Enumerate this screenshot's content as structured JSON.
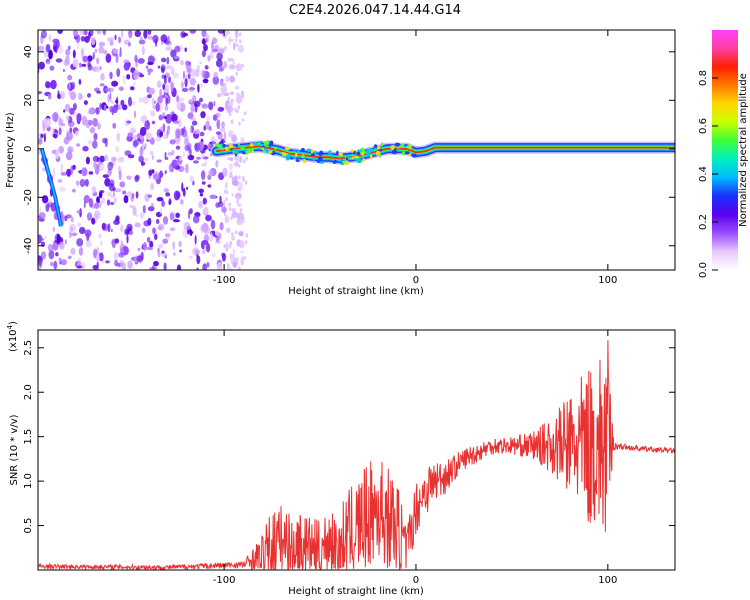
{
  "title": "C2E4.2026.047.14.44.G14",
  "chart_data": [
    {
      "type": "heatmap",
      "title": "C2E4.2026.047.14.44.G14",
      "xlabel": "Height of straight line (km)",
      "ylabel": "Frequency (Hz)",
      "xlim": [
        -197,
        135
      ],
      "ylim": [
        -50,
        49
      ],
      "x_ticks": [
        -100,
        0,
        100
      ],
      "y_ticks": [
        40,
        20,
        0,
        -20,
        -40
      ],
      "colorbar": {
        "label": "Normalized spectral amplitude",
        "range": [
          0,
          1
        ],
        "ticks": [
          0.0,
          0.2,
          0.4,
          0.6,
          0.8
        ],
        "colors": [
          "#ffffff",
          "#e8c8ff",
          "#9a4dff",
          "#5a00ee",
          "#1a30ff",
          "#00b8ff",
          "#00f0c0",
          "#3cff3c",
          "#c8ff00",
          "#ffd800",
          "#ff7a00",
          "#ff2000",
          "#ff40a0",
          "#ff40ff"
        ]
      },
      "noise_region": {
        "x_from": -197,
        "x_to": -100
      },
      "ridge": {
        "x": [
          -104,
          -95,
          -88,
          -82,
          -78,
          -72,
          -66,
          -60,
          -55,
          -50,
          -45,
          -40,
          -35,
          -30,
          -25,
          -20,
          -15,
          -10,
          -5,
          0,
          5,
          10,
          20,
          40,
          60,
          80,
          98,
          135
        ],
        "y": [
          -1,
          0,
          0.5,
          1,
          0.5,
          -0.5,
          -2,
          -2.5,
          -3,
          -3.5,
          -3.5,
          -4,
          -3.5,
          -3,
          -2,
          -1,
          0,
          0,
          0,
          -1.5,
          -1,
          0.5,
          0.5,
          0.5,
          0.5,
          0.5,
          0.5,
          0.5
        ]
      },
      "left_streak": {
        "x": [
          -195,
          -188,
          -185
        ],
        "y": [
          0,
          -20,
          -32
        ]
      }
    },
    {
      "type": "line",
      "xlabel": "Height of straight line (km)",
      "ylabel": "SNR (10 * v/v)",
      "y_multiplier": "(x10",
      "y_multiplier_exp": "4",
      "y_multiplier_close": ")",
      "xlim": [
        -197,
        135
      ],
      "ylim": [
        0,
        27000
      ],
      "x_ticks": [
        -100,
        0,
        100
      ],
      "y_ticks": [
        2.5,
        2.0,
        1.5,
        1.0,
        0.5
      ],
      "color": "#e83232",
      "envelope": {
        "x": [
          -197,
          -130,
          -90,
          -80,
          -75,
          -70,
          -65,
          -60,
          -55,
          -50,
          -45,
          -40,
          -35,
          -30,
          -25,
          -20,
          -15,
          -10,
          -5,
          0,
          5,
          10,
          15,
          20,
          25,
          30,
          35,
          40,
          50,
          60,
          70,
          80,
          90,
          95,
          100,
          103,
          110,
          120,
          135
        ],
        "base": [
          400,
          300,
          600,
          1500,
          2500,
          3000,
          2800,
          3000,
          2500,
          2000,
          3500,
          3000,
          4000,
          5000,
          6000,
          7000,
          6000,
          5000,
          2000,
          7000,
          9000,
          10000,
          10500,
          11500,
          12500,
          13000,
          13500,
          14000,
          14000,
          14000,
          14000,
          14000,
          14000,
          14000,
          14000,
          14000,
          13800,
          13600,
          13400
        ],
        "amp": [
          250,
          250,
          400,
          2500,
          4500,
          4500,
          4000,
          3500,
          3500,
          3500,
          4000,
          4500,
          5000,
          5500,
          6000,
          6000,
          6000,
          5500,
          3000,
          3000,
          3000,
          2500,
          2000,
          1500,
          1200,
          1200,
          1000,
          1000,
          1000,
          1500,
          3000,
          6000,
          9000,
          10000,
          12000,
          500,
          300,
          300,
          300
        ]
      }
    }
  ]
}
